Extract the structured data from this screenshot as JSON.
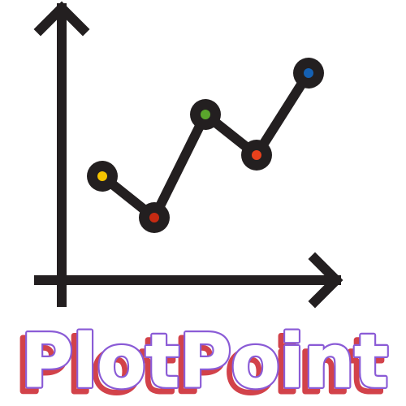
{
  "brand": {
    "name": "PlotPoint"
  },
  "icon": {
    "name": "line-chart-icon",
    "stroke_color": "#231f20",
    "dot_colors": [
      "#f5c400",
      "#c62a12",
      "#5aa52c",
      "#e8411c",
      "#1561b4"
    ]
  },
  "wordmark_colors": {
    "shadow": "#d2424a",
    "outline": "#8a5bd6"
  }
}
